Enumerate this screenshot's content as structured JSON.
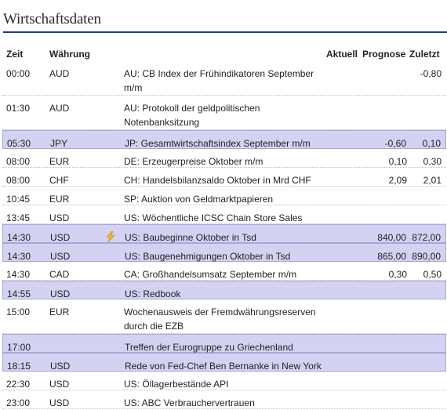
{
  "title": "Wirtschaftsdaten",
  "columns": {
    "time": "Zeit",
    "currency": "Währung",
    "actual": "Aktuell",
    "forecast": "Prognose",
    "previous": "Zuletzt"
  },
  "highlight_color": "#d3d2f3",
  "rows": [
    {
      "time": "00:00",
      "currency": "AUD",
      "event": "AU: CB Index der Frühindikatoren September m/m",
      "actual": "",
      "forecast": "",
      "previous": "-0,80",
      "highlight": false,
      "icon": ""
    },
    {
      "time": "01:30",
      "currency": "AUD",
      "event": "AU: Protokoll der geldpolitischen Notenbanksitzung",
      "actual": "",
      "forecast": "",
      "previous": "",
      "highlight": false,
      "icon": ""
    },
    {
      "time": "05:30",
      "currency": "JPY",
      "event": "JP: Gesamtwirtschaftsindex September m/m",
      "actual": "",
      "forecast": "-0,60",
      "previous": "0,10",
      "highlight": true,
      "icon": ""
    },
    {
      "time": "08:00",
      "currency": "EUR",
      "event": "DE: Erzeugerpreise Oktober m/m",
      "actual": "",
      "forecast": "0,10",
      "previous": "0,30",
      "highlight": false,
      "icon": ""
    },
    {
      "time": "08:00",
      "currency": "CHF",
      "event": "CH: Handelsbilanzsaldo Oktober in Mrd CHF",
      "actual": "",
      "forecast": "2,09",
      "previous": "2,01",
      "highlight": false,
      "icon": ""
    },
    {
      "time": "10:45",
      "currency": "EUR",
      "event": "SP: Auktion von Geldmarktpapieren",
      "actual": "",
      "forecast": "",
      "previous": "",
      "highlight": false,
      "icon": ""
    },
    {
      "time": "13:45",
      "currency": "USD",
      "event": "US: Wöchentliche ICSC Chain Store Sales",
      "actual": "",
      "forecast": "",
      "previous": "",
      "highlight": false,
      "icon": ""
    },
    {
      "time": "14:30",
      "currency": "USD",
      "event": "US: Baubeginne Oktober in Tsd",
      "actual": "",
      "forecast": "840,00",
      "previous": "872,00",
      "highlight": true,
      "icon": "lightning-icon"
    },
    {
      "time": "14:30",
      "currency": "USD",
      "event": "US: Baugenehmigungen Oktober in Tsd",
      "actual": "",
      "forecast": "865,00",
      "previous": "890,00",
      "highlight": true,
      "icon": ""
    },
    {
      "time": "14:30",
      "currency": "CAD",
      "event": "CA: Großhandelsumsatz September m/m",
      "actual": "",
      "forecast": "0,30",
      "previous": "0,50",
      "highlight": false,
      "icon": ""
    },
    {
      "time": "14:55",
      "currency": "USD",
      "event": "US: Redbook",
      "actual": "",
      "forecast": "",
      "previous": "",
      "highlight": true,
      "icon": ""
    },
    {
      "time": "15:00",
      "currency": "EUR",
      "event": "Wochenausweis der Fremdwährungsreserven durch die EZB",
      "actual": "",
      "forecast": "",
      "previous": "",
      "highlight": false,
      "icon": ""
    },
    {
      "time": "17:00",
      "currency": "",
      "event": "Treffen der Eurogruppe zu Griechenland",
      "actual": "",
      "forecast": "",
      "previous": "",
      "highlight": true,
      "icon": ""
    },
    {
      "time": "18:15",
      "currency": "USD",
      "event": "Rede von Fed-Chef Ben Bernanke in New York",
      "actual": "",
      "forecast": "",
      "previous": "",
      "highlight": true,
      "icon": ""
    },
    {
      "time": "22:30",
      "currency": "USD",
      "event": "US: Öllagerbestände API",
      "actual": "",
      "forecast": "",
      "previous": "",
      "highlight": false,
      "icon": ""
    },
    {
      "time": "23:00",
      "currency": "USD",
      "event": "US: ABC Verbrauchervertrauen",
      "actual": "",
      "forecast": "",
      "previous": "",
      "highlight": false,
      "icon": ""
    }
  ]
}
